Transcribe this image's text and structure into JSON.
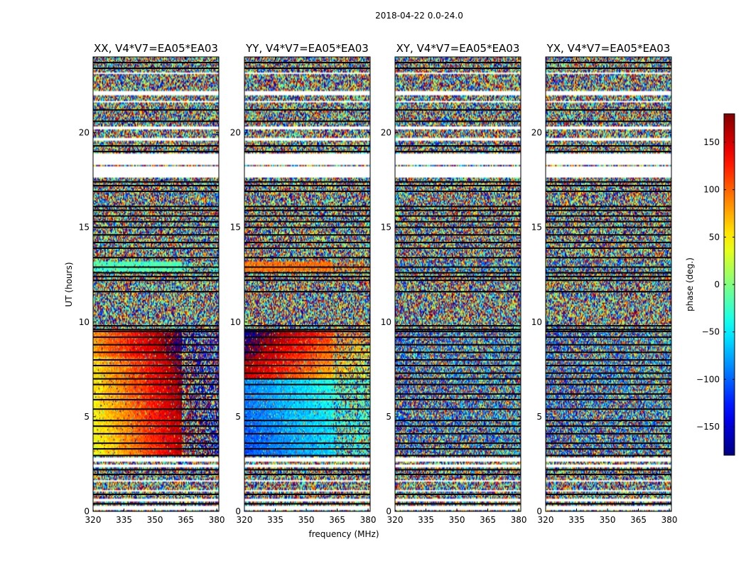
{
  "figure": {
    "suptitle": "2018-04-22 0.0-24.0",
    "xlabel": "frequency (MHz)",
    "ylabel": "UT (hours)"
  },
  "chart_data": {
    "type": "heatmap",
    "title": "2018-04-22 0.0-24.0",
    "xlabel": "frequency (MHz)",
    "ylabel": "UT (hours)",
    "xlim": [
      320,
      381
    ],
    "ylim": [
      0,
      24
    ],
    "xticks": [
      320,
      335,
      350,
      365,
      380
    ],
    "yticks": [
      0,
      5,
      10,
      15,
      20
    ],
    "panels": [
      {
        "title": "XX, V4*V7=EA05*EA03",
        "pol": "XX",
        "show_ylabels": true
      },
      {
        "title": "YY, V4*V7=EA05*EA03",
        "pol": "YY",
        "show_ylabels": true
      },
      {
        "title": "XY, V4*V7=EA05*EA03",
        "pol": "XY",
        "show_ylabels": true
      },
      {
        "title": "YX, V4*V7=EA05*EA03",
        "pol": "YX",
        "show_ylabels": true
      }
    ],
    "colorbar": {
      "label": "phase (deg.)",
      "range": [
        -180,
        180
      ],
      "ticks": [
        -150,
        -100,
        -50,
        0,
        50,
        100,
        150
      ],
      "colormap": "jet"
    },
    "structure": {
      "blank_bands_hours": [
        [
          0.1,
          0.3
        ],
        [
          0.55,
          0.7
        ],
        [
          1.05,
          1.12
        ],
        [
          1.6,
          1.68
        ],
        [
          2.3,
          2.5
        ],
        [
          2.6,
          2.85
        ],
        [
          17.6,
          18.2
        ],
        [
          18.3,
          18.9
        ],
        [
          19.6,
          19.7
        ],
        [
          20.2,
          20.3
        ],
        [
          21.6,
          21.7
        ],
        [
          22.0,
          22.2
        ],
        [
          23.1,
          23.2
        ]
      ],
      "flag_lines_hours": [
        0.4,
        0.9,
        1.95,
        2.2,
        2.95,
        3.3,
        3.6,
        4.1,
        4.5,
        4.8,
        5.4,
        5.9,
        6.2,
        6.7,
        7.0,
        7.3,
        7.7,
        8.0,
        8.4,
        8.8,
        9.2,
        9.5,
        9.6,
        9.8,
        11.6,
        12.2,
        12.4,
        12.6,
        12.9,
        13.4,
        13.9,
        14.2,
        14.6,
        15.0,
        15.3,
        15.6,
        15.9,
        16.1,
        16.9,
        17.2,
        17.4,
        19.0,
        19.3,
        20.6,
        21.2,
        23.4,
        23.7
      ],
      "calibrator_hours": [
        [
          2.9,
          9.6
        ],
        [
          12.65,
          13.2
        ]
      ],
      "rfi_edge_MHz": 363
    }
  }
}
